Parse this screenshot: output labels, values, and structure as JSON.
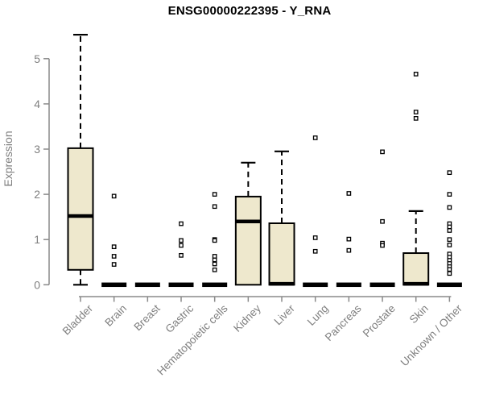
{
  "chart_data": {
    "type": "boxplot",
    "title": "ENSG00000222395 - Y_RNA",
    "xlabel": "",
    "ylabel": "Expression",
    "ylim": [
      0,
      5.6
    ],
    "yticks": [
      0,
      1,
      2,
      3,
      4,
      5
    ],
    "grid": false,
    "legend": "none",
    "colors": {
      "box_fill": "#EEE8CD",
      "box_stroke": "#000000",
      "median": "#000000",
      "whisker": "#000000",
      "outlier_fill": "#ffffff",
      "axis": "#8a8a8a",
      "tick_label": "#7f7f7f",
      "title": "#000000",
      "background": "#ffffff"
    },
    "categories": [
      "Bladder",
      "Brain",
      "Breast",
      "Gastric",
      "Hematopoietic cells",
      "Kidney",
      "Liver",
      "Lung",
      "Pancreas",
      "Prostate",
      "Skin",
      "Unknown / Other"
    ],
    "boxes": [
      {
        "label": "Bladder",
        "low": 0,
        "q1": 0.33,
        "median": 1.52,
        "q3": 3.02,
        "high": 5.53,
        "outliers": []
      },
      {
        "label": "Brain",
        "low": 0,
        "q1": 0,
        "median": 0,
        "q3": 0,
        "high": 0,
        "outliers": [
          1.96,
          0.84,
          0.63,
          0.45
        ]
      },
      {
        "label": "Breast",
        "low": 0,
        "q1": 0,
        "median": 0,
        "q3": 0,
        "high": 0,
        "outliers": []
      },
      {
        "label": "Gastric",
        "low": 0,
        "q1": 0,
        "median": 0,
        "q3": 0,
        "high": 0,
        "outliers": [
          1.35,
          0.98,
          0.87,
          0.65
        ]
      },
      {
        "label": "Hematopoietic cells",
        "low": 0,
        "q1": 0,
        "median": 0,
        "q3": 0,
        "high": 0,
        "outliers": [
          2.0,
          1.73,
          1.0,
          0.98,
          0.63,
          0.55,
          0.46,
          0.33
        ]
      },
      {
        "label": "Kidney",
        "low": 0,
        "q1": 0,
        "median": 1.4,
        "q3": 1.95,
        "high": 2.7,
        "outliers": []
      },
      {
        "label": "Liver",
        "low": 0,
        "q1": 0,
        "median": 0.02,
        "q3": 1.36,
        "high": 2.95,
        "outliers": []
      },
      {
        "label": "Lung",
        "low": 0,
        "q1": 0,
        "median": 0,
        "q3": 0,
        "high": 0,
        "outliers": [
          3.25,
          1.04,
          0.74
        ]
      },
      {
        "label": "Pancreas",
        "low": 0,
        "q1": 0,
        "median": 0,
        "q3": 0,
        "high": 0,
        "outliers": [
          2.02,
          1.01,
          0.76
        ]
      },
      {
        "label": "Prostate",
        "low": 0,
        "q1": 0,
        "median": 0,
        "q3": 0,
        "high": 0,
        "outliers": [
          2.94,
          1.4,
          0.92,
          0.87
        ]
      },
      {
        "label": "Skin",
        "low": 0,
        "q1": 0,
        "median": 0.02,
        "q3": 0.7,
        "high": 1.63,
        "outliers": [
          4.66,
          3.82,
          3.68
        ]
      },
      {
        "label": "Unknown / Other",
        "low": 0,
        "q1": 0,
        "median": 0,
        "q3": 0,
        "high": 0,
        "outliers": [
          2.48,
          2.0,
          1.71,
          1.35,
          1.28,
          1.2,
          1.0,
          0.88,
          0.68,
          0.61,
          0.54,
          0.47,
          0.4,
          0.34,
          0.25
        ]
      }
    ]
  }
}
